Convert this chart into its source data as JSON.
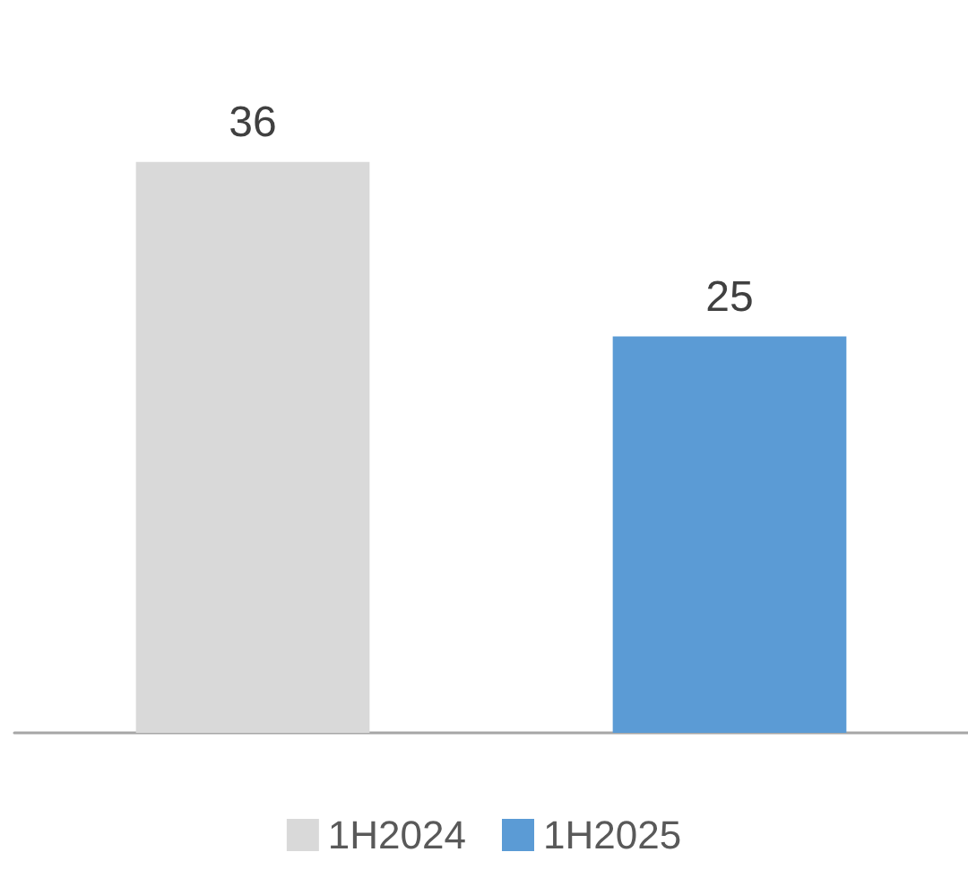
{
  "chart_data": {
    "type": "bar",
    "categories": [
      null,
      null
    ],
    "stacked": true,
    "series": [
      {
        "name": "1H2024",
        "color": "#d9d9d9",
        "values": [
          36,
          null
        ]
      },
      {
        "name": "1H2025",
        "color": "#5b9bd5",
        "values": [
          null,
          25
        ]
      }
    ],
    "data_labels": true,
    "legend": "bottom"
  }
}
